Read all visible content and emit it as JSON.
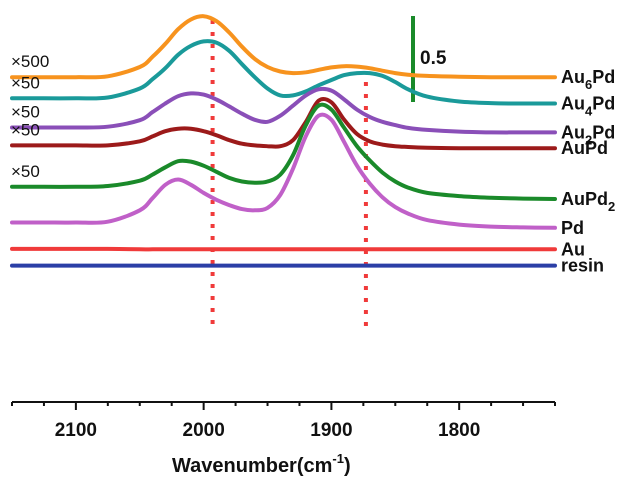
{
  "chart_data": {
    "type": "line",
    "title": "",
    "xlabel": "Wavenumber(cm",
    "xlabel_sup": "-1",
    "ylabel": "",
    "xlim": [
      2150,
      1725
    ],
    "x_reversed": true,
    "ylim": [
      -9.0,
      0.9
    ],
    "ticks": [
      2100,
      2000,
      1900,
      1800
    ],
    "tick_labels": [
      "2100",
      "2000",
      "1900",
      "1800"
    ],
    "grid": false,
    "legend": "labels at right end of each curve",
    "scale_bar": {
      "label": "0.5",
      "value": 0.5,
      "color": "#1a8a2a"
    },
    "reference_lines": [
      {
        "x": 1993,
        "color": "#f03a3a",
        "style": "dotted"
      },
      {
        "x": 1873,
        "color": "#f03a3a",
        "style": "dotted"
      }
    ],
    "x": [
      2150,
      2125,
      2100,
      2075,
      2050,
      2040,
      2030,
      2020,
      2010,
      2000,
      1990,
      1980,
      1970,
      1960,
      1950,
      1940,
      1930,
      1920,
      1910,
      1900,
      1890,
      1880,
      1870,
      1860,
      1850,
      1840,
      1825,
      1800,
      1775,
      1750,
      1725
    ],
    "series": [
      {
        "name": "Au6Pd",
        "label_main": "Au",
        "label_sub": "6",
        "label_tail": "Pd",
        "multiplier": "×500",
        "color": "#f7931e",
        "values": [
          -1.0,
          -1.0,
          -1.0,
          -0.98,
          -0.75,
          -0.5,
          -0.18,
          0.18,
          0.42,
          0.5,
          0.38,
          0.1,
          -0.25,
          -0.55,
          -0.75,
          -0.86,
          -0.9,
          -0.88,
          -0.82,
          -0.76,
          -0.73,
          -0.74,
          -0.78,
          -0.84,
          -0.9,
          -0.94,
          -0.97,
          -0.99,
          -1.0,
          -1.0,
          -1.0
        ]
      },
      {
        "name": "Au4Pd",
        "label_main": "Au",
        "label_sub": "4",
        "label_tail": "Pd",
        "multiplier": "×50",
        "color": "#1a9a9a",
        "values": [
          -1.52,
          -1.52,
          -1.52,
          -1.5,
          -1.28,
          -1.05,
          -0.78,
          -0.45,
          -0.23,
          -0.12,
          -0.15,
          -0.35,
          -0.68,
          -1.0,
          -1.28,
          -1.45,
          -1.45,
          -1.35,
          -1.2,
          -1.07,
          -0.95,
          -0.9,
          -0.9,
          -0.97,
          -1.12,
          -1.3,
          -1.48,
          -1.6,
          -1.64,
          -1.65,
          -1.65
        ]
      },
      {
        "name": "Au2Pd",
        "label_main": "Au",
        "label_sub": "2",
        "label_tail": "Pd",
        "multiplier": "×50",
        "color": "#8a4fb8",
        "values": [
          -2.24,
          -2.24,
          -2.24,
          -2.22,
          -2.06,
          -1.86,
          -1.65,
          -1.47,
          -1.4,
          -1.43,
          -1.55,
          -1.72,
          -1.9,
          -2.05,
          -2.1,
          -1.95,
          -1.7,
          -1.45,
          -1.3,
          -1.33,
          -1.55,
          -1.8,
          -1.98,
          -2.1,
          -2.18,
          -2.25,
          -2.3,
          -2.34,
          -2.36,
          -2.36,
          -2.36
        ]
      },
      {
        "name": "AuPd",
        "label_main": "AuPd",
        "label_sub": "",
        "label_tail": "",
        "multiplier": "×50",
        "color": "#9c1a1a",
        "values": [
          -2.68,
          -2.68,
          -2.68,
          -2.68,
          -2.58,
          -2.46,
          -2.33,
          -2.27,
          -2.27,
          -2.33,
          -2.43,
          -2.55,
          -2.64,
          -2.68,
          -2.7,
          -2.7,
          -2.55,
          -2.1,
          -1.58,
          -1.62,
          -2.05,
          -2.4,
          -2.58,
          -2.66,
          -2.7,
          -2.72,
          -2.74,
          -2.75,
          -2.75,
          -2.75,
          -2.75
        ]
      },
      {
        "name": "AuPd2",
        "label_main": "AuPd",
        "label_sub": "2",
        "label_tail": "",
        "multiplier": "×50",
        "color": "#1a8a2a",
        "values": [
          -3.7,
          -3.7,
          -3.7,
          -3.68,
          -3.55,
          -3.4,
          -3.22,
          -3.07,
          -3.08,
          -3.18,
          -3.33,
          -3.48,
          -3.57,
          -3.6,
          -3.57,
          -3.4,
          -2.92,
          -2.18,
          -1.7,
          -1.8,
          -2.25,
          -2.7,
          -3.05,
          -3.35,
          -3.57,
          -3.72,
          -3.85,
          -3.93,
          -3.97,
          -3.99,
          -4.0
        ]
      },
      {
        "name": "Pd",
        "label_main": "Pd",
        "label_sub": "",
        "label_tail": "",
        "multiplier": "",
        "color": "#c060c8",
        "values": [
          -4.58,
          -4.58,
          -4.58,
          -4.56,
          -4.28,
          -3.98,
          -3.65,
          -3.52,
          -3.65,
          -3.85,
          -4.02,
          -4.15,
          -4.25,
          -4.28,
          -4.22,
          -3.9,
          -3.25,
          -2.45,
          -1.95,
          -2.05,
          -2.6,
          -3.18,
          -3.62,
          -3.96,
          -4.2,
          -4.36,
          -4.52,
          -4.63,
          -4.68,
          -4.7,
          -4.71
        ]
      },
      {
        "name": "Au",
        "label_main": "Au",
        "label_sub": "",
        "label_tail": "",
        "multiplier": "",
        "color": "#f03a3a",
        "values": [
          -5.23,
          -5.23,
          -5.23,
          -5.23,
          -5.24,
          -5.24,
          -5.24,
          -5.24,
          -5.24,
          -5.24,
          -5.24,
          -5.24,
          -5.24,
          -5.24,
          -5.24,
          -5.24,
          -5.24,
          -5.24,
          -5.24,
          -5.24,
          -5.24,
          -5.24,
          -5.24,
          -5.24,
          -5.24,
          -5.24,
          -5.24,
          -5.24,
          -5.24,
          -5.24,
          -5.24
        ]
      },
      {
        "name": "resin",
        "label_main": "resin",
        "label_sub": "",
        "label_tail": "",
        "multiplier": "",
        "color": "#2b3fa6",
        "values": [
          -5.64,
          -5.64,
          -5.64,
          -5.64,
          -5.64,
          -5.64,
          -5.64,
          -5.64,
          -5.64,
          -5.64,
          -5.64,
          -5.64,
          -5.64,
          -5.64,
          -5.64,
          -5.64,
          -5.64,
          -5.64,
          -5.64,
          -5.64,
          -5.64,
          -5.64,
          -5.64,
          -5.64,
          -5.64,
          -5.64,
          -5.64,
          -5.64,
          -5.64,
          -5.64,
          -5.64
        ]
      }
    ]
  }
}
